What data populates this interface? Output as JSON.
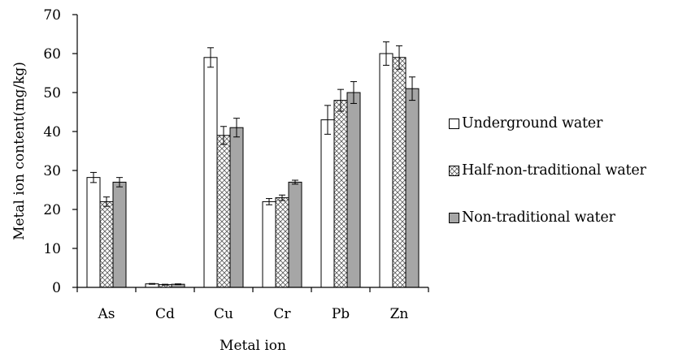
{
  "chart_data": {
    "type": "bar",
    "title": "",
    "xlabel": "Metal ion",
    "ylabel": "Metal ion content(mg/kg)",
    "categories": [
      "As",
      "Cd",
      "Cu",
      "Cr",
      "Pb",
      "Zn"
    ],
    "ylim": [
      0,
      70
    ],
    "yticks": [
      "0",
      "10",
      "20",
      "30",
      "40",
      "50",
      "60",
      "70"
    ],
    "grid": false,
    "legend_position": "right",
    "series": [
      {
        "name": "Underground water",
        "fill": "white",
        "color": "#ffffff",
        "values": [
          28.2,
          0.9,
          59.0,
          22.0,
          43.0,
          60.0
        ],
        "errors": [
          1.3,
          0.1,
          2.5,
          0.8,
          3.7,
          3.0
        ]
      },
      {
        "name": "Half-non-traditional water",
        "fill": "crosshatch",
        "color": "#ffffff",
        "values": [
          22.0,
          0.7,
          39.0,
          23.0,
          48.0,
          59.0
        ],
        "errors": [
          1.2,
          0.1,
          2.3,
          0.7,
          2.8,
          3.0
        ]
      },
      {
        "name": "Non-traditional water",
        "fill": "solid",
        "color": "#a6a6a6",
        "values": [
          27.0,
          0.8,
          41.0,
          27.0,
          50.0,
          51.0
        ],
        "errors": [
          1.2,
          0.1,
          2.4,
          0.5,
          2.8,
          3.0
        ]
      }
    ]
  }
}
